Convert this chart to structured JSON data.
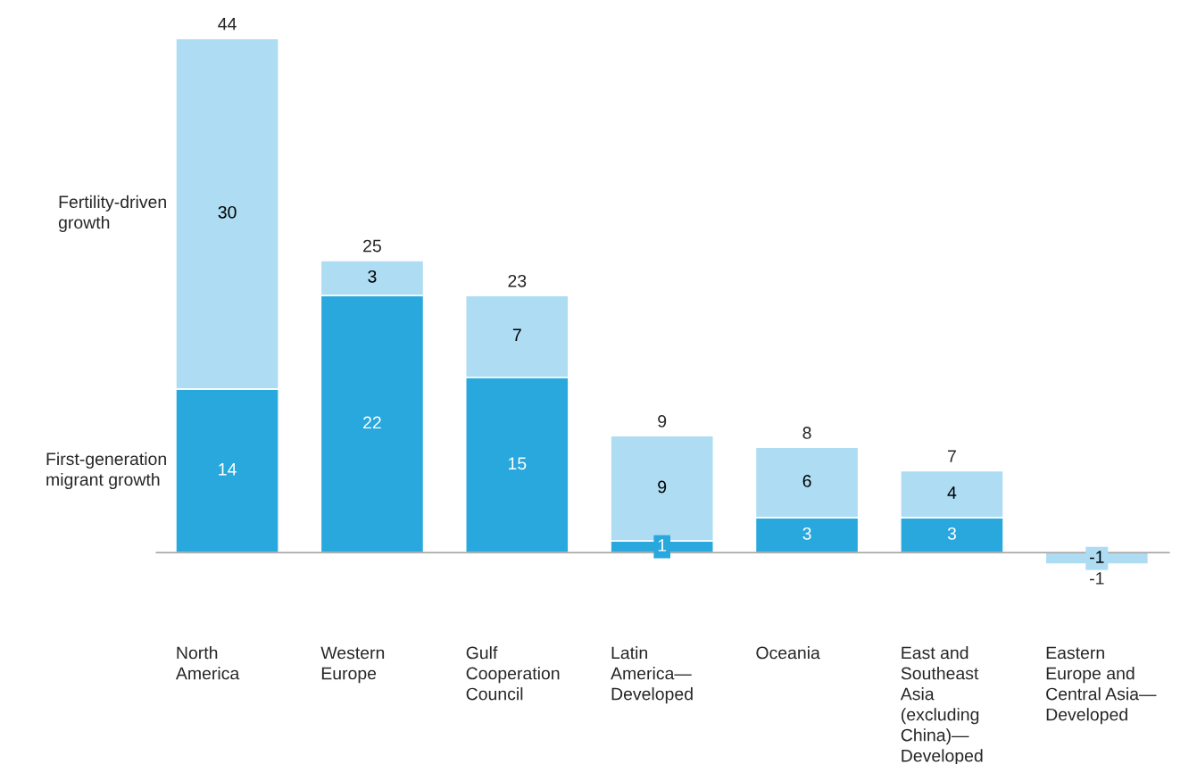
{
  "chart_data": {
    "type": "bar",
    "stacked": true,
    "data_labels": true,
    "categories": [
      "North\nAmerica",
      "Western\nEurope",
      "Gulf\nCooperation\nCouncil",
      "Latin\nAmerica—\nDeveloped",
      "Oceania",
      "East and\nSoutheast\nAsia\n(excluding\nChina)—\nDeveloped",
      "Eastern\nEurope and\nCentral Asia—\nDeveloped"
    ],
    "series": [
      {
        "name": "First-generation\nmigrant growth",
        "color": "#29a8dd",
        "values": [
          14,
          22,
          15,
          1,
          3,
          3,
          null
        ]
      },
      {
        "name": "Fertility-driven\ngrowth",
        "color": "#addcf3",
        "values": [
          30,
          3,
          7,
          9,
          6,
          4,
          -1
        ]
      }
    ],
    "totals": [
      "44",
      "25",
      "23",
      "9",
      "8",
      "7",
      "-1"
    ]
  }
}
